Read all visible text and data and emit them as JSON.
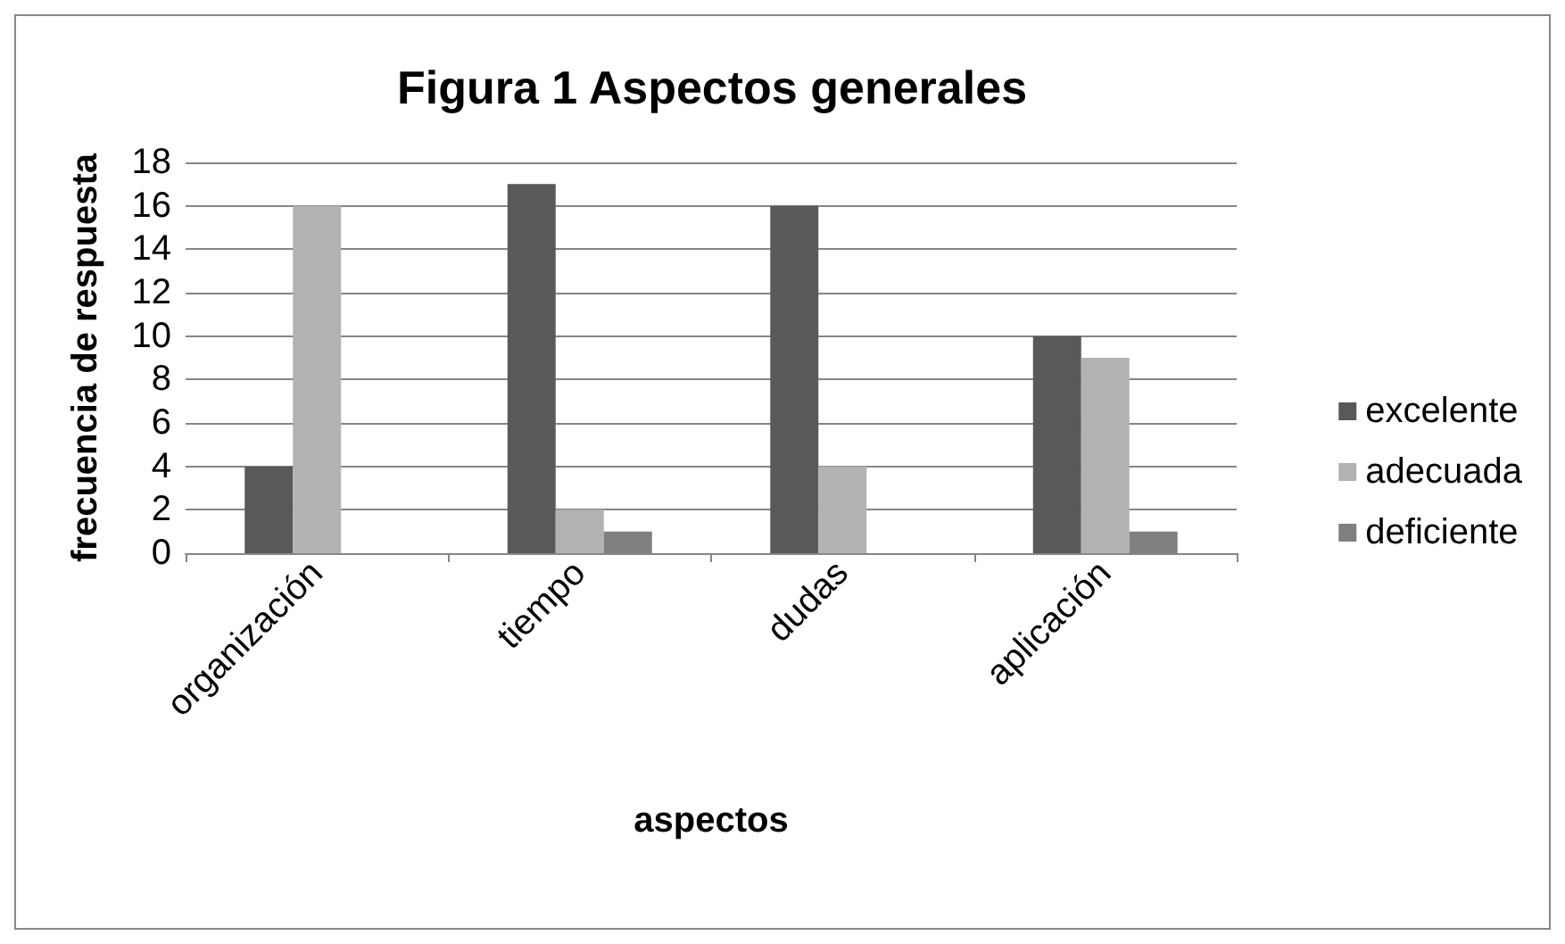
{
  "chart_data": {
    "type": "bar",
    "title": "Figura 1 Aspectos generales",
    "xlabel": "aspectos",
    "ylabel": "frecuencia de respuesta",
    "categories": [
      "organización",
      "tiempo",
      "dudas",
      "aplicación"
    ],
    "series": [
      {
        "name": "excelente",
        "color": "#595959",
        "values": [
          4,
          17,
          16,
          10
        ]
      },
      {
        "name": "adecuada",
        "color": "#b2b2b2",
        "values": [
          16,
          2,
          4,
          9
        ]
      },
      {
        "name": "deficiente",
        "color": "#7f7f7f",
        "values": [
          0,
          1,
          0,
          1
        ]
      }
    ],
    "ylim": [
      0,
      18
    ],
    "yticks": [
      0,
      2,
      4,
      6,
      8,
      10,
      12,
      14,
      16,
      18
    ],
    "grid": "y",
    "legend": "right"
  }
}
